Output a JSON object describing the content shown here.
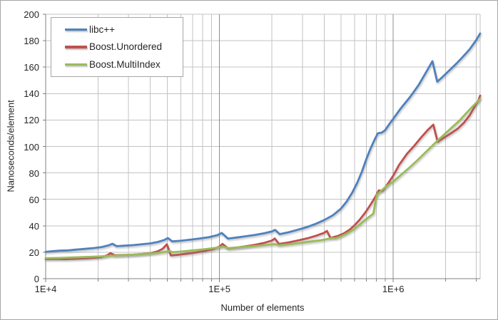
{
  "chart_data": {
    "type": "line",
    "title": "",
    "xlabel": "Number of elements",
    "ylabel": "Nanoseconds/element",
    "x_axis": {
      "scale": "log",
      "min": 10000,
      "max": 3162278,
      "major_ticks": [
        {
          "value": 10000,
          "label": "1E+4"
        },
        {
          "value": 100000,
          "label": "1E+5"
        },
        {
          "value": 1000000,
          "label": "1E+6"
        }
      ]
    },
    "y_axis": {
      "min": 0,
      "max": 200,
      "tick_step": 20
    },
    "grid": "major-and-minor",
    "legend_position": "top-left-inside",
    "series": [
      {
        "name": "libc++",
        "color": "#4F81BD",
        "points": [
          [
            10000,
            20.3
          ],
          [
            11000,
            20.8
          ],
          [
            12000,
            21.2
          ],
          [
            13500,
            21.4
          ],
          [
            15000,
            22.0
          ],
          [
            17000,
            22.6
          ],
          [
            19000,
            23.2
          ],
          [
            21000,
            23.9
          ],
          [
            23000,
            25.2
          ],
          [
            24200,
            26.4
          ],
          [
            25600,
            24.6
          ],
          [
            28000,
            24.9
          ],
          [
            32000,
            25.4
          ],
          [
            36000,
            26.1
          ],
          [
            40000,
            26.7
          ],
          [
            44000,
            27.7
          ],
          [
            48000,
            29.2
          ],
          [
            50500,
            30.7
          ],
          [
            53500,
            28.2
          ],
          [
            60000,
            28.7
          ],
          [
            68000,
            29.5
          ],
          [
            77000,
            30.4
          ],
          [
            87000,
            31.4
          ],
          [
            97000,
            32.9
          ],
          [
            103000,
            34.6
          ],
          [
            112000,
            30.3
          ],
          [
            125000,
            31.1
          ],
          [
            140000,
            32.0
          ],
          [
            160000,
            33.1
          ],
          [
            180000,
            34.3
          ],
          [
            200000,
            35.7
          ],
          [
            209000,
            36.9
          ],
          [
            222000,
            33.7
          ],
          [
            250000,
            35.1
          ],
          [
            280000,
            36.9
          ],
          [
            320000,
            39.1
          ],
          [
            360000,
            41.6
          ],
          [
            400000,
            44.3
          ],
          [
            450000,
            48.0
          ],
          [
            500000,
            53.0
          ],
          [
            540000,
            58.5
          ],
          [
            580000,
            65.0
          ],
          [
            620000,
            72.5
          ],
          [
            660000,
            81.0
          ],
          [
            700000,
            90.5
          ],
          [
            740000,
            98.5
          ],
          [
            780000,
            105.0
          ],
          [
            815000,
            110.0
          ],
          [
            860000,
            110.5
          ],
          [
            900000,
            112.5
          ],
          [
            950000,
            117.0
          ],
          [
            1000000,
            121.0
          ],
          [
            1100000,
            128.5
          ],
          [
            1250000,
            137.5
          ],
          [
            1400000,
            146.5
          ],
          [
            1550000,
            156.5
          ],
          [
            1680000,
            164.5
          ],
          [
            1790000,
            149.0
          ],
          [
            1900000,
            152.0
          ],
          [
            2100000,
            157.5
          ],
          [
            2300000,
            162.5
          ],
          [
            2500000,
            167.5
          ],
          [
            2750000,
            173.5
          ],
          [
            3000000,
            180.5
          ],
          [
            3162000,
            185.5
          ]
        ]
      },
      {
        "name": "Boost.Unordered",
        "color": "#C0504D",
        "points": [
          [
            10000,
            14.9
          ],
          [
            11500,
            15.0
          ],
          [
            13000,
            14.8
          ],
          [
            15000,
            15.1
          ],
          [
            17000,
            15.4
          ],
          [
            19000,
            15.8
          ],
          [
            21000,
            16.4
          ],
          [
            22600,
            17.7
          ],
          [
            23600,
            19.3
          ],
          [
            25000,
            17.7
          ],
          [
            28000,
            17.9
          ],
          [
            32000,
            18.2
          ],
          [
            36000,
            18.7
          ],
          [
            40000,
            19.3
          ],
          [
            44000,
            20.6
          ],
          [
            47000,
            22.5
          ],
          [
            49800,
            26.0
          ],
          [
            52500,
            17.6
          ],
          [
            58000,
            18.1
          ],
          [
            65000,
            18.9
          ],
          [
            73000,
            19.8
          ],
          [
            82000,
            20.9
          ],
          [
            92000,
            22.4
          ],
          [
            100000,
            24.2
          ],
          [
            104000,
            26.3
          ],
          [
            112000,
            22.9
          ],
          [
            125000,
            23.5
          ],
          [
            140000,
            24.4
          ],
          [
            160000,
            25.6
          ],
          [
            180000,
            27.0
          ],
          [
            200000,
            28.8
          ],
          [
            208000,
            30.4
          ],
          [
            220000,
            26.3
          ],
          [
            250000,
            27.4
          ],
          [
            280000,
            28.8
          ],
          [
            320000,
            30.5
          ],
          [
            360000,
            32.5
          ],
          [
            400000,
            34.7
          ],
          [
            415000,
            36.1
          ],
          [
            435000,
            30.9
          ],
          [
            480000,
            32.3
          ],
          [
            520000,
            34.3
          ],
          [
            560000,
            37.0
          ],
          [
            600000,
            40.5
          ],
          [
            640000,
            44.5
          ],
          [
            690000,
            50.0
          ],
          [
            740000,
            56.0
          ],
          [
            790000,
            62.0
          ],
          [
            825000,
            66.8
          ],
          [
            865000,
            66.3
          ],
          [
            910000,
            70.0
          ],
          [
            955000,
            74.0
          ],
          [
            1000000,
            78.0
          ],
          [
            1080000,
            86.0
          ],
          [
            1200000,
            94.5
          ],
          [
            1320000,
            100.5
          ],
          [
            1450000,
            107.0
          ],
          [
            1580000,
            112.5
          ],
          [
            1700000,
            116.5
          ],
          [
            1800000,
            103.5
          ],
          [
            1950000,
            106.5
          ],
          [
            2150000,
            110.0
          ],
          [
            2350000,
            113.5
          ],
          [
            2550000,
            118.0
          ],
          [
            2750000,
            123.5
          ],
          [
            2950000,
            130.5
          ],
          [
            3080000,
            134.5
          ],
          [
            3162000,
            138.5
          ]
        ]
      },
      {
        "name": "Boost.MultiIndex",
        "color": "#9BBB59",
        "points": [
          [
            10000,
            15.5
          ],
          [
            12000,
            15.7
          ],
          [
            14000,
            16.0
          ],
          [
            17000,
            16.4
          ],
          [
            20000,
            16.8
          ],
          [
            24000,
            17.3
          ],
          [
            28000,
            17.8
          ],
          [
            33000,
            18.3
          ],
          [
            38000,
            18.9
          ],
          [
            44000,
            19.5
          ],
          [
            48500,
            20.2
          ],
          [
            51000,
            21.0
          ],
          [
            54000,
            20.0
          ],
          [
            62000,
            20.7
          ],
          [
            70000,
            21.4
          ],
          [
            80000,
            22.1
          ],
          [
            90000,
            22.9
          ],
          [
            100000,
            23.7
          ],
          [
            105000,
            24.2
          ],
          [
            113000,
            23.1
          ],
          [
            130000,
            23.8
          ],
          [
            150000,
            24.4
          ],
          [
            170000,
            25.0
          ],
          [
            195000,
            25.8
          ],
          [
            209000,
            26.1
          ],
          [
            221000,
            25.3
          ],
          [
            255000,
            26.1
          ],
          [
            290000,
            27.0
          ],
          [
            330000,
            28.0
          ],
          [
            380000,
            29.0
          ],
          [
            425000,
            30.2
          ],
          [
            445000,
            30.8
          ],
          [
            465000,
            30.5
          ],
          [
            500000,
            32.0
          ],
          [
            545000,
            34.4
          ],
          [
            590000,
            37.2
          ],
          [
            640000,
            40.8
          ],
          [
            690000,
            44.6
          ],
          [
            740000,
            47.6
          ],
          [
            768000,
            49.2
          ],
          [
            785000,
            56.5
          ],
          [
            805000,
            63.5
          ],
          [
            850000,
            66.3
          ],
          [
            900000,
            69.3
          ],
          [
            950000,
            71.5
          ],
          [
            1000000,
            73.5
          ],
          [
            1100000,
            78.2
          ],
          [
            1250000,
            84.5
          ],
          [
            1400000,
            90.5
          ],
          [
            1600000,
            98.0
          ],
          [
            1800000,
            104.5
          ],
          [
            2000000,
            110.0
          ],
          [
            2200000,
            115.0
          ],
          [
            2400000,
            119.5
          ],
          [
            2600000,
            124.5
          ],
          [
            2800000,
            129.0
          ],
          [
            3000000,
            133.0
          ],
          [
            3162000,
            136.0
          ]
        ]
      }
    ]
  },
  "style_colors": {
    "background": "#FFFFFF",
    "chart_border": "#A6A6A6",
    "axis_line": "#808080",
    "grid_minor": "#C3C3C3",
    "grid_major": "#8F8F8F",
    "tick_text": "#262626",
    "legend_border": "#A6A6A6"
  }
}
